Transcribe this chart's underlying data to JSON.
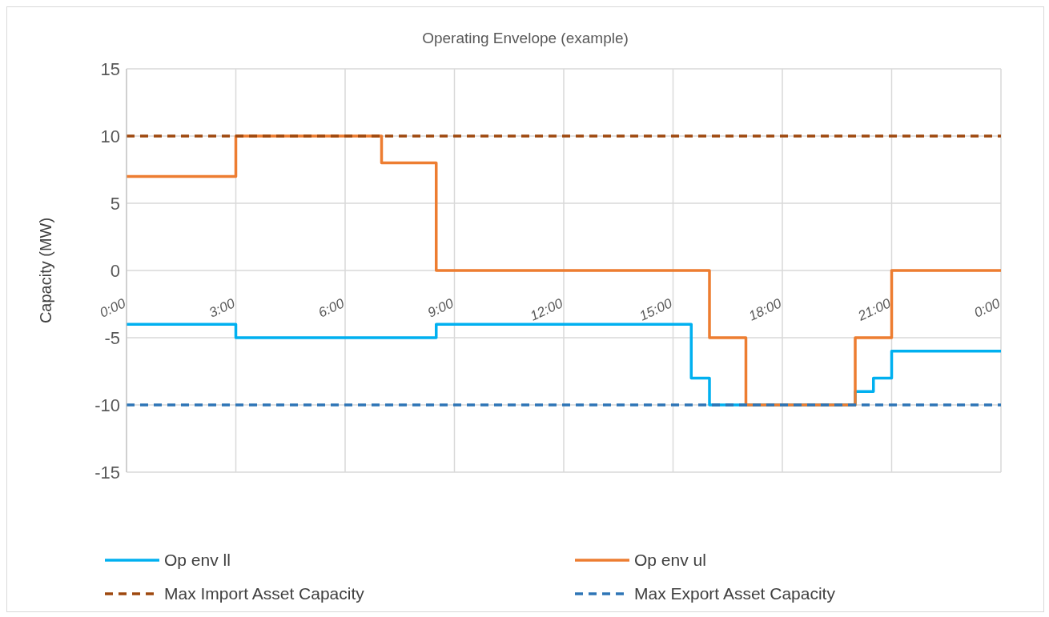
{
  "chart_data": {
    "type": "step",
    "title": "Operating Envelope (example)",
    "ylabel": "Capacity (MW)",
    "xlim": [
      0,
      24
    ],
    "ylim": [
      -15,
      15
    ],
    "yticks": [
      -15,
      -10,
      -5,
      0,
      5,
      10,
      15
    ],
    "xticks": [
      {
        "value": 0,
        "label": "0:00"
      },
      {
        "value": 3,
        "label": "3:00"
      },
      {
        "value": 6,
        "label": "6:00"
      },
      {
        "value": 9,
        "label": "9:00"
      },
      {
        "value": 12,
        "label": "12:00"
      },
      {
        "value": 15,
        "label": "15:00"
      },
      {
        "value": 18,
        "label": "18:00"
      },
      {
        "value": 21,
        "label": "21:00"
      },
      {
        "value": 24,
        "label": "0:00"
      }
    ],
    "grid": true,
    "legend": "bottom",
    "marker": "none",
    "series": [
      {
        "name": "Op env ll",
        "type": "step",
        "color": "#00b0f0",
        "line_style": "solid",
        "x": [
          0,
          3,
          8.5,
          15.5,
          16,
          20,
          20.5,
          21,
          24
        ],
        "values": [
          -4,
          -5,
          -4,
          -8,
          -10,
          -9,
          -8,
          -6,
          -6
        ]
      },
      {
        "name": "Op env ul",
        "type": "step",
        "color": "#ed7d31",
        "line_style": "solid",
        "x": [
          0,
          3,
          7,
          8.5,
          16,
          17,
          20,
          21,
          24
        ],
        "values": [
          7,
          10,
          8,
          0,
          -5,
          -10,
          -5,
          0,
          0
        ]
      },
      {
        "name": "Max Import Asset Capacity",
        "type": "line",
        "color": "#9e480e",
        "line_style": "dashed",
        "x": [
          0,
          24
        ],
        "values": [
          10,
          10
        ]
      },
      {
        "name": "Max Export Asset Capacity",
        "type": "line",
        "color": "#2e75b6",
        "line_style": "dashed",
        "x": [
          0,
          24
        ],
        "values": [
          -10,
          -10
        ]
      }
    ]
  }
}
